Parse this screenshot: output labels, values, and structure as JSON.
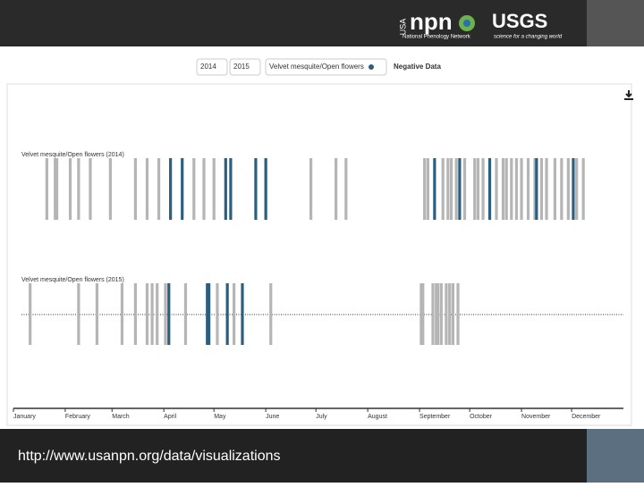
{
  "header": {
    "npn_badge": "USA",
    "npn_logo": "npn",
    "npn_name": "National Phenology Network",
    "usgs_logo": "USGS",
    "usgs_tagline": "science for a changing world"
  },
  "controls": [
    "2014",
    "2015",
    "Velvet mesquite/Open flowers",
    "Negative Data"
  ],
  "footer": {
    "url": "http://www.usanpn.org/data/visualizations"
  },
  "chart_data": {
    "type": "timeline",
    "xlim": [
      0,
      365
    ],
    "xticks": [
      {
        "value": 0,
        "label": "January"
      },
      {
        "value": 31,
        "label": "February"
      },
      {
        "value": 59,
        "label": "March"
      },
      {
        "value": 90,
        "label": "April"
      },
      {
        "value": 120,
        "label": "May"
      },
      {
        "value": 151,
        "label": "June"
      },
      {
        "value": 181,
        "label": "July"
      },
      {
        "value": 212,
        "label": "August"
      },
      {
        "value": 243,
        "label": "September"
      },
      {
        "value": 273,
        "label": "October"
      },
      {
        "value": 304,
        "label": "November"
      },
      {
        "value": 334,
        "label": "December"
      }
    ],
    "colors": [
      "#b5b5b5",
      "#2b5f80"
    ],
    "series": [
      {
        "name": "Velvet mesquite/Open flowers (2014)",
        "x": [
          20,
          25,
          26,
          34,
          39,
          46,
          58,
          73,
          80,
          87,
          94,
          101,
          108,
          114,
          120,
          127,
          130,
          145,
          151,
          178,
          193,
          199,
          246,
          248,
          252,
          257,
          260,
          262,
          265,
          267,
          270,
          276,
          278,
          281,
          285,
          289,
          293,
          295,
          298,
          301,
          304,
          308,
          312,
          313,
          316,
          319,
          324,
          328,
          332,
          335,
          337,
          341
        ],
        "values": [
          0,
          0,
          0,
          0,
          0,
          0,
          0,
          0,
          0,
          0,
          1,
          1,
          0,
          0,
          0,
          1,
          1,
          1,
          1,
          0,
          0,
          0,
          0,
          0,
          1,
          0,
          0,
          0,
          0,
          1,
          0,
          0,
          0,
          0,
          1,
          0,
          0,
          0,
          0,
          0,
          0,
          0,
          0,
          1,
          0,
          0,
          0,
          0,
          0,
          1,
          0,
          0
        ]
      },
      {
        "name": "Velvet mesquite/Open flowers (2015)",
        "x": [
          10,
          39,
          50,
          65,
          73,
          80,
          83,
          86,
          91,
          93,
          103,
          116,
          117,
          122,
          128,
          132,
          137,
          154,
          244,
          245,
          251,
          253,
          254,
          256,
          259,
          261,
          263,
          266
        ],
        "values": [
          0,
          0,
          0,
          0,
          0,
          0,
          0,
          0,
          0,
          1,
          0,
          1,
          1,
          0,
          1,
          0,
          1,
          0,
          0,
          0,
          0,
          0,
          0,
          0,
          0,
          0,
          0,
          0
        ]
      }
    ]
  }
}
